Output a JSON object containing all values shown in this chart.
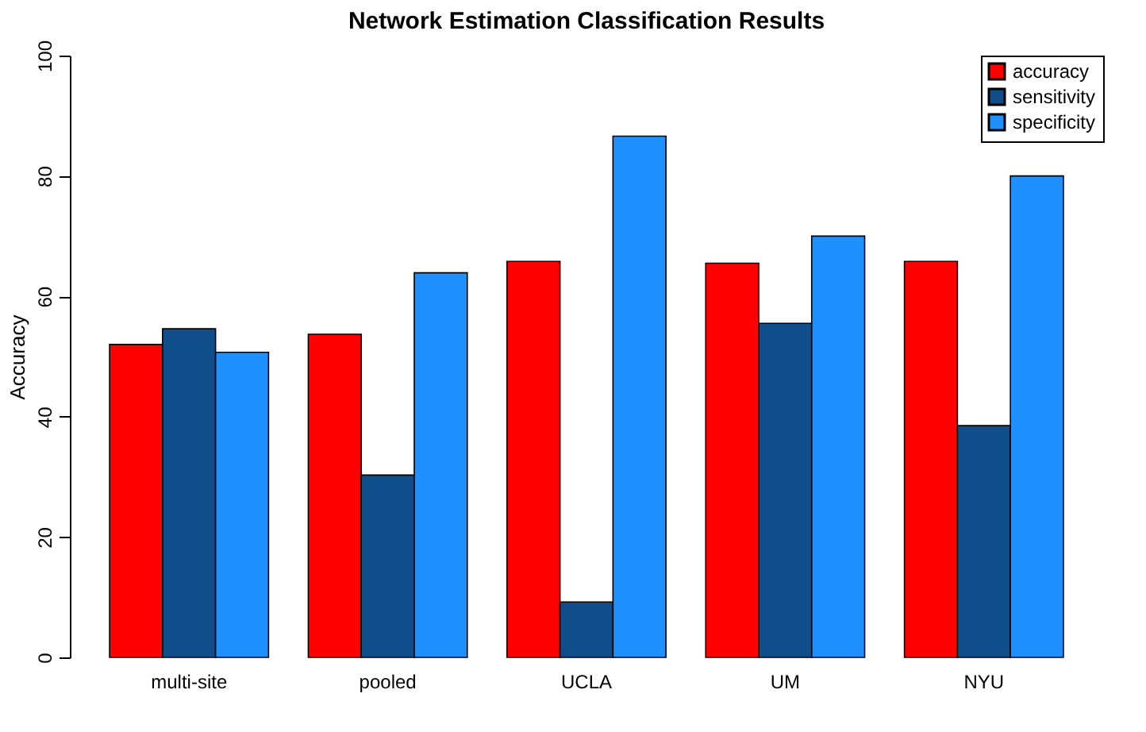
{
  "chart_data": {
    "type": "bar",
    "title": "Network Estimation Classification Results",
    "ylabel": "Accuracy",
    "categories": [
      "multi-site",
      "pooled",
      "UCLA",
      "UM",
      "NYU"
    ],
    "series": [
      {
        "name": "accuracy",
        "color": "#ff0000",
        "values": [
          52,
          53.7,
          65.8,
          65.5,
          65.8
        ]
      },
      {
        "name": "sensitivity",
        "color": "#104e8b",
        "values": [
          54.6,
          30.3,
          9.2,
          55.5,
          38.5
        ]
      },
      {
        "name": "specificity",
        "color": "#1e90ff",
        "values": [
          50.7,
          63.9,
          86.6,
          70,
          80
        ]
      }
    ],
    "ylim": [
      0,
      100
    ],
    "yticks": [
      0,
      20,
      40,
      60,
      80,
      100
    ],
    "grid": false,
    "legend": "top right"
  }
}
